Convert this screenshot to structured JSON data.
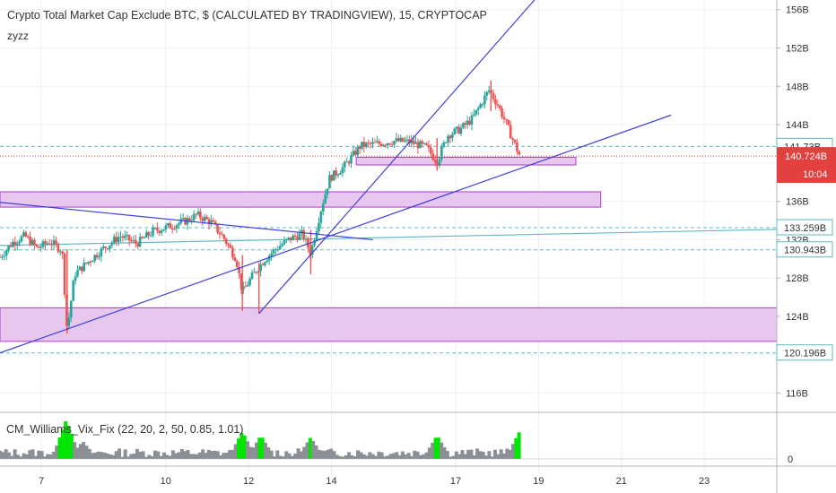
{
  "header": {
    "title": "Crypto Total Market Cap Exclude BTC, $ (CALCULATED BY TRADINGVIEW), 15, CRYPTOCAP",
    "subtitle": "zyzz"
  },
  "indicator": {
    "label": "CM_Williams_Vix_Fix (22, 20, 2, 50, 0.85, 1.01)",
    "axis_tick": "0"
  },
  "colors": {
    "up": "#26a69a",
    "up_bright": "#00e600",
    "down": "#ef5350",
    "trendline": "#3f3fd8",
    "zone_fill": "#e8c7ee",
    "zone_border": "#b43ad0",
    "level_line": "#5fb8c2",
    "price_line": "#e34040",
    "grid": "#eef0f3"
  },
  "chart_data": {
    "type": "candlestick",
    "ylim": [
      114,
      157
    ],
    "yticks": [
      "116B",
      "120B",
      "124B",
      "128B",
      "132B",
      "136B",
      "140B",
      "144B",
      "148B",
      "152B",
      "156B"
    ],
    "xticks": [
      "7",
      "10",
      "12",
      "14",
      "17",
      "19",
      "21",
      "23"
    ],
    "last_price": {
      "value": 140.724,
      "label": "140.724B",
      "countdown": "10:04"
    },
    "levels": [
      {
        "value": 141.73,
        "label": "141.73B"
      },
      {
        "value": 133.259,
        "label": "133.259B"
      },
      {
        "value": 130.943,
        "label": "130.943B"
      },
      {
        "value": 120.196,
        "label": "120.196B"
      }
    ],
    "price_path": [
      [
        6.0,
        130.2
      ],
      [
        6.3,
        131.7
      ],
      [
        6.6,
        132.4
      ],
      [
        6.9,
        131.1
      ],
      [
        7.2,
        131.8
      ],
      [
        7.5,
        130.9
      ],
      [
        7.62,
        122.5
      ],
      [
        7.8,
        128.4
      ],
      [
        8.1,
        129.6
      ],
      [
        8.5,
        131.1
      ],
      [
        8.9,
        132.4
      ],
      [
        9.3,
        131.6
      ],
      [
        9.7,
        132.9
      ],
      [
        10.1,
        133.4
      ],
      [
        10.5,
        134.0
      ],
      [
        10.75,
        134.6
      ],
      [
        11.1,
        133.8
      ],
      [
        11.4,
        132.2
      ],
      [
        11.7,
        130.0
      ],
      [
        11.85,
        126.5
      ],
      [
        12.0,
        127.6
      ],
      [
        12.2,
        128.9
      ],
      [
        12.4,
        130.0
      ],
      [
        12.7,
        131.2
      ],
      [
        13.0,
        132.1
      ],
      [
        13.3,
        132.6
      ],
      [
        13.5,
        130.6
      ],
      [
        13.75,
        135.2
      ],
      [
        13.95,
        138.4
      ],
      [
        14.3,
        139.6
      ],
      [
        14.7,
        141.8
      ],
      [
        15.1,
        142.0
      ],
      [
        15.5,
        142.3
      ],
      [
        15.9,
        142.2
      ],
      [
        16.3,
        141.6
      ],
      [
        16.55,
        140.1
      ],
      [
        16.8,
        142.9
      ],
      [
        17.1,
        143.5
      ],
      [
        17.4,
        144.6
      ],
      [
        17.6,
        146.1
      ],
      [
        17.8,
        147.6
      ],
      [
        18.0,
        146.2
      ],
      [
        18.2,
        144.3
      ],
      [
        18.4,
        142.2
      ],
      [
        18.55,
        140.7
      ]
    ],
    "wicks": [
      {
        "x": 7.62,
        "low": 122.2,
        "high": 131.0
      },
      {
        "x": 11.85,
        "low": 124.6,
        "high": 130.4
      },
      {
        "x": 12.25,
        "low": 124.3,
        "high": 129.6
      },
      {
        "x": 13.5,
        "low": 128.4,
        "high": 133.0
      },
      {
        "x": 16.55,
        "low": 139.2,
        "high": 142.6
      },
      {
        "x": 17.85,
        "low": 145.4,
        "high": 148.6
      }
    ],
    "zones": [
      {
        "x0": 6.0,
        "x1": 20.5,
        "y0": 135.4,
        "y1": 137.0
      },
      {
        "x0": 6.0,
        "x1": 25.0,
        "y0": 121.4,
        "y1": 124.9
      },
      {
        "x0": 14.6,
        "x1": 19.9,
        "y0": 139.8,
        "y1": 140.6
      }
    ],
    "trendlines": [
      {
        "x0": 6.0,
        "y0": 120.2,
        "x1": 22.2,
        "y1": 145.0
      },
      {
        "x0": 12.25,
        "y0": 124.3,
        "x1": 18.9,
        "y1": 157.0
      },
      {
        "x0": 6.0,
        "y0": 135.9,
        "x1": 15.0,
        "y1": 132.0
      }
    ],
    "flat_line": {
      "x0": 6.0,
      "y0": 131.4,
      "x1": 25.0,
      "y1": 133.1
    },
    "vix_spikes": [
      {
        "x": 7.6,
        "v": 1.0
      },
      {
        "x": 8.0,
        "v": 0.45
      },
      {
        "x": 11.85,
        "v": 0.7
      },
      {
        "x": 12.3,
        "v": 0.6
      },
      {
        "x": 13.5,
        "v": 0.55
      },
      {
        "x": 16.55,
        "v": 0.6
      },
      {
        "x": 18.55,
        "v": 0.72
      }
    ]
  }
}
